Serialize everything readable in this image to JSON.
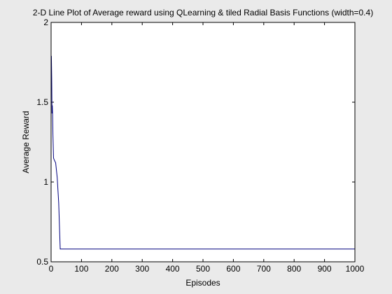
{
  "chart_data": {
    "type": "line",
    "title": "2-D Line Plot of Average reward using QLearning & tiled Radial Basis Functions (width=0.4)",
    "xlabel": "Episodes",
    "ylabel": "Average Reward",
    "xlim": [
      0,
      1000
    ],
    "ylim": [
      0.5,
      2
    ],
    "xticks": [
      0,
      100,
      200,
      300,
      400,
      500,
      600,
      700,
      800,
      900,
      1000
    ],
    "xtick_labels": [
      "0",
      "100",
      "200",
      "300",
      "400",
      "500",
      "600",
      "700",
      "800",
      "900",
      "1000"
    ],
    "yticks": [
      0.5,
      1,
      1.5,
      2
    ],
    "ytick_labels": [
      "0.5",
      "1",
      "1.5",
      "2"
    ],
    "grid": false,
    "legend": false,
    "series": [
      {
        "color": "#00007f",
        "x": [
          1,
          2,
          3,
          4,
          5,
          6,
          8,
          10,
          15,
          20,
          25,
          30,
          35,
          40,
          100,
          200,
          300,
          400,
          500,
          600,
          700,
          800,
          900,
          1000
        ],
        "y": [
          1.79,
          1.65,
          1.43,
          1.48,
          1.42,
          1.3,
          1.15,
          1.14,
          1.12,
          1.03,
          0.87,
          0.58,
          0.58,
          0.58,
          0.58,
          0.58,
          0.58,
          0.58,
          0.58,
          0.58,
          0.58,
          0.58,
          0.58,
          0.58
        ]
      }
    ]
  }
}
